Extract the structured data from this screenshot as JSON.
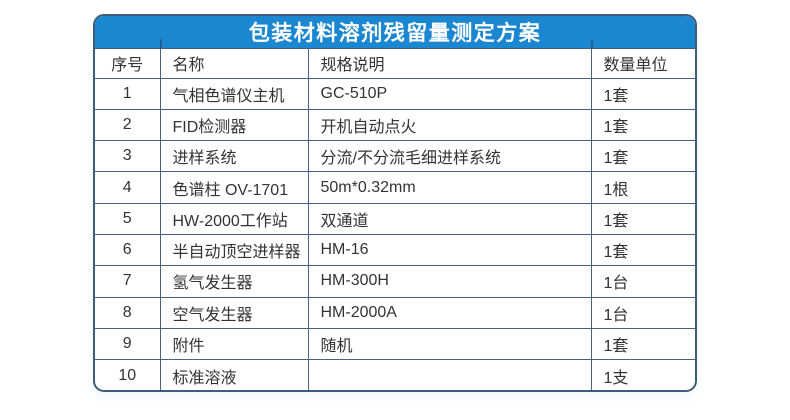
{
  "table": {
    "title": "包装材料溶剂残留量测定方案",
    "columns": [
      "序号",
      "名称",
      "规格说明",
      "数量单位"
    ],
    "rows": [
      {
        "no": "1",
        "name": "气相色谱仪主机",
        "spec": "GC-510P",
        "qty": "1套"
      },
      {
        "no": "2",
        "name": "FID检测器",
        "spec": "开机自动点火",
        "qty": "1套"
      },
      {
        "no": "3",
        "name": "进样系统",
        "spec": "分流/不分流毛细进样系统",
        "qty": "1套"
      },
      {
        "no": "4",
        "name": "色谱柱 OV-1701",
        "spec": "50m*0.32mm",
        "qty": "1根"
      },
      {
        "no": "5",
        "name": "HW-2000工作站",
        "spec": "双通道",
        "qty": "1套"
      },
      {
        "no": "6",
        "name": "半自动顶空进样器",
        "spec": "HM-16",
        "qty": "1套"
      },
      {
        "no": "7",
        "name": "氢气发生器",
        "spec": "HM-300H",
        "qty": "1台"
      },
      {
        "no": "8",
        "name": "空气发生器",
        "spec": "HM-2000A",
        "qty": "1台"
      },
      {
        "no": "9",
        "name": "附件",
        "spec": "随机",
        "qty": "1套"
      },
      {
        "no": "10",
        "name": "标准溶液",
        "spec": "",
        "qty": "1支"
      }
    ]
  },
  "colors": {
    "header_blue": "#1c87d1",
    "border": "#3f5c7b",
    "grid_line": "#47617e",
    "text": "#333333",
    "title_text": "#ffffff"
  }
}
